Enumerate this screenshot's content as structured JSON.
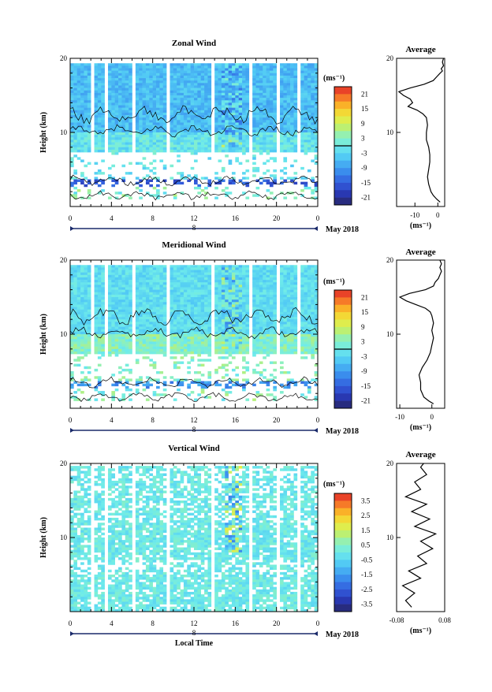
{
  "chart_data": [
    {
      "type": "heatmap",
      "title": "Zonal Wind",
      "ylabel": "Height (km)",
      "ylim": [
        0,
        20
      ],
      "y_ticks": [
        "20",
        "10"
      ],
      "xlim": [
        0,
        24
      ],
      "x_ticks": [
        "0",
        "4",
        "8",
        "12",
        "16",
        "20",
        "0"
      ],
      "date_marker": "8",
      "date_label": "May 2018",
      "colorbar": {
        "unit": "(ms⁻¹)",
        "range": [
          -24,
          24
        ],
        "ticks": [
          "21",
          "15",
          "9",
          "3",
          "-3",
          "-9",
          "-15",
          "-21"
        ],
        "zero_line": true
      },
      "contours": true,
      "average_profile": {
        "title": "Average",
        "xlabel": "(ms⁻¹)",
        "xlim": [
          -18,
          3
        ],
        "x_ticks": [
          "-10",
          "0"
        ],
        "y_ticks": [
          "20",
          "10"
        ],
        "points": [
          [
            1.0,
            0.6
          ],
          [
            -0.5,
            1.0
          ],
          [
            -2.0,
            1.5
          ],
          [
            -3.0,
            2.0
          ],
          [
            -4.0,
            3.0
          ],
          [
            -4.5,
            4.0
          ],
          [
            -4.0,
            5.0
          ],
          [
            -3.5,
            6.0
          ],
          [
            -3.5,
            7.0
          ],
          [
            -4.0,
            8.0
          ],
          [
            -5.0,
            9.0
          ],
          [
            -5.0,
            10.0
          ],
          [
            -4.5,
            11.0
          ],
          [
            -5.0,
            12.0
          ],
          [
            -6.5,
            12.5
          ],
          [
            -9.0,
            13.0
          ],
          [
            -13.0,
            13.5
          ],
          [
            -11.0,
            14.0
          ],
          [
            -12.0,
            14.5
          ],
          [
            -15.0,
            15.0
          ],
          [
            -17.0,
            15.5
          ],
          [
            -12.0,
            16.0
          ],
          [
            -6.0,
            16.5
          ],
          [
            -2.0,
            17.0
          ],
          [
            -0.5,
            17.5
          ],
          [
            1.0,
            18.0
          ],
          [
            2.0,
            18.3
          ],
          [
            1.5,
            18.6
          ],
          [
            2.5,
            19.0
          ],
          [
            2.0,
            19.5
          ],
          [
            2.5,
            20.0
          ]
        ]
      }
    },
    {
      "type": "heatmap",
      "title": "Meridional Wind",
      "ylabel": "Height (km)",
      "ylim": [
        0,
        20
      ],
      "y_ticks": [
        "20",
        "10"
      ],
      "xlim": [
        0,
        24
      ],
      "x_ticks": [
        "0",
        "4",
        "8",
        "12",
        "16",
        "20",
        "0"
      ],
      "date_marker": "8",
      "date_label": "May 2018",
      "colorbar": {
        "unit": "(ms⁻¹)",
        "range": [
          -24,
          24
        ],
        "ticks": [
          "21",
          "15",
          "9",
          "3",
          "-3",
          "-9",
          "-15",
          "-21"
        ],
        "zero_line": true
      },
      "contours": true,
      "average_profile": {
        "title": "Average",
        "xlabel": "(ms⁻¹)",
        "xlim": [
          -11,
          4
        ],
        "x_ticks": [
          "-10",
          "0"
        ],
        "y_ticks": [
          "20",
          "10"
        ],
        "points": [
          [
            0.5,
            0.6
          ],
          [
            -1.0,
            1.0
          ],
          [
            -2.5,
            1.5
          ],
          [
            -3.5,
            2.5
          ],
          [
            -3.5,
            3.5
          ],
          [
            -4.0,
            4.5
          ],
          [
            -3.0,
            5.5
          ],
          [
            -1.5,
            6.5
          ],
          [
            -0.5,
            7.5
          ],
          [
            0.0,
            8.5
          ],
          [
            0.5,
            9.5
          ],
          [
            0.0,
            10.5
          ],
          [
            0.5,
            11.5
          ],
          [
            0.0,
            12.5
          ],
          [
            -0.5,
            13.0
          ],
          [
            -2.0,
            13.5
          ],
          [
            -5.0,
            14.0
          ],
          [
            -8.0,
            14.5
          ],
          [
            -10.0,
            15.0
          ],
          [
            -7.0,
            15.5
          ],
          [
            -2.0,
            16.0
          ],
          [
            0.5,
            16.5
          ],
          [
            1.0,
            17.0
          ],
          [
            2.0,
            17.5
          ],
          [
            2.5,
            18.0
          ],
          [
            3.0,
            18.5
          ],
          [
            2.5,
            19.0
          ],
          [
            3.0,
            19.5
          ],
          [
            2.5,
            20.0
          ]
        ]
      }
    },
    {
      "type": "heatmap",
      "title": "Vertical Wind",
      "xlabel": "Local Time",
      "ylabel": "Height (km)",
      "ylim": [
        0,
        20
      ],
      "y_ticks": [
        "20",
        "10"
      ],
      "xlim": [
        0,
        24
      ],
      "x_ticks": [
        "0",
        "4",
        "8",
        "12",
        "16",
        "20",
        "0"
      ],
      "date_marker": "8",
      "date_label": "May 2018",
      "colorbar": {
        "unit": "(ms⁻¹)",
        "range": [
          -4,
          4
        ],
        "ticks": [
          "3.5",
          "2.5",
          "1.5",
          "0.5",
          "-0.5",
          "-1.5",
          "-2.5",
          "-3.5"
        ],
        "zero_line": false
      },
      "contours": false,
      "average_profile": {
        "title": "Average",
        "xlabel": "(ms⁻¹)",
        "xlim": [
          -0.08,
          0.08
        ],
        "x_ticks": [
          "-0.08",
          "0.08"
        ],
        "y_ticks": [
          "20",
          "10"
        ],
        "points": [
          [
            -0.03,
            0.6
          ],
          [
            -0.05,
            1.5
          ],
          [
            -0.02,
            2.5
          ],
          [
            -0.06,
            3.5
          ],
          [
            0.0,
            4.5
          ],
          [
            -0.04,
            5.5
          ],
          [
            0.02,
            6.5
          ],
          [
            -0.01,
            7.5
          ],
          [
            0.04,
            8.5
          ],
          [
            0.0,
            9.5
          ],
          [
            0.05,
            10.5
          ],
          [
            -0.02,
            11.5
          ],
          [
            0.03,
            12.5
          ],
          [
            -0.03,
            13.5
          ],
          [
            0.02,
            14.5
          ],
          [
            -0.05,
            15.5
          ],
          [
            0.0,
            16.5
          ],
          [
            -0.02,
            17.5
          ],
          [
            0.02,
            18.5
          ],
          [
            0.0,
            19.5
          ],
          [
            0.01,
            20.0
          ]
        ]
      }
    }
  ]
}
